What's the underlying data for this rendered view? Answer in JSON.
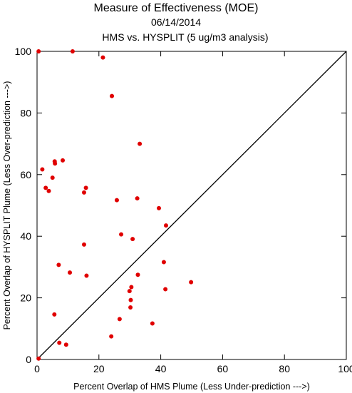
{
  "chart_data": {
    "type": "scatter",
    "title": "Measure of Effectiveness (MOE)",
    "subtitle_date": "06/14/2014",
    "subtitle_analysis": "HMS vs. HYSPLIT  (5 ug/m3 analysis)",
    "xlabel": "Percent Overlap of HMS Plume (Less Under-prediction --->)",
    "ylabel": "Percent Overlap of HYSPLIT Plume (Less Over-prediction --->)",
    "xlim": [
      0,
      100
    ],
    "ylim": [
      0,
      100
    ],
    "x_ticks": [
      0,
      20,
      40,
      60,
      80,
      100
    ],
    "y_ticks": [
      0,
      20,
      40,
      60,
      80,
      100
    ],
    "diagonal_reference_line": true,
    "point_color": "#e00000",
    "points": [
      {
        "x": 0.5,
        "y": 100
      },
      {
        "x": 11.5,
        "y": 100
      },
      {
        "x": 21.3,
        "y": 98
      },
      {
        "x": 24.2,
        "y": 85.5
      },
      {
        "x": 33.2,
        "y": 70
      },
      {
        "x": 1.7,
        "y": 61.7
      },
      {
        "x": 5.7,
        "y": 64.3
      },
      {
        "x": 8.3,
        "y": 64.6
      },
      {
        "x": 5.8,
        "y": 63.6
      },
      {
        "x": 5.0,
        "y": 59
      },
      {
        "x": 2.8,
        "y": 55.7
      },
      {
        "x": 3.8,
        "y": 54.7
      },
      {
        "x": 15.8,
        "y": 55.7
      },
      {
        "x": 15.2,
        "y": 54.2
      },
      {
        "x": 25.8,
        "y": 51.7
      },
      {
        "x": 32.4,
        "y": 52.3
      },
      {
        "x": 39.4,
        "y": 49.1
      },
      {
        "x": 41.7,
        "y": 43.5
      },
      {
        "x": 27.2,
        "y": 40.6
      },
      {
        "x": 30.9,
        "y": 39.1
      },
      {
        "x": 15.2,
        "y": 37.3
      },
      {
        "x": 7.0,
        "y": 30.7
      },
      {
        "x": 41.0,
        "y": 31.6
      },
      {
        "x": 10.6,
        "y": 28.2
      },
      {
        "x": 16.0,
        "y": 27.2
      },
      {
        "x": 32.6,
        "y": 27.5
      },
      {
        "x": 49.8,
        "y": 25.1
      },
      {
        "x": 30.5,
        "y": 23.5
      },
      {
        "x": 29.9,
        "y": 22.2
      },
      {
        "x": 41.5,
        "y": 22.8
      },
      {
        "x": 30.3,
        "y": 19.3
      },
      {
        "x": 30.2,
        "y": 16.9
      },
      {
        "x": 5.6,
        "y": 14.6
      },
      {
        "x": 26.7,
        "y": 13.1
      },
      {
        "x": 37.3,
        "y": 11.7
      },
      {
        "x": 24.0,
        "y": 7.5
      },
      {
        "x": 7.2,
        "y": 5.4
      },
      {
        "x": 9.4,
        "y": 4.8
      },
      {
        "x": 0.5,
        "y": 0.3
      }
    ]
  }
}
